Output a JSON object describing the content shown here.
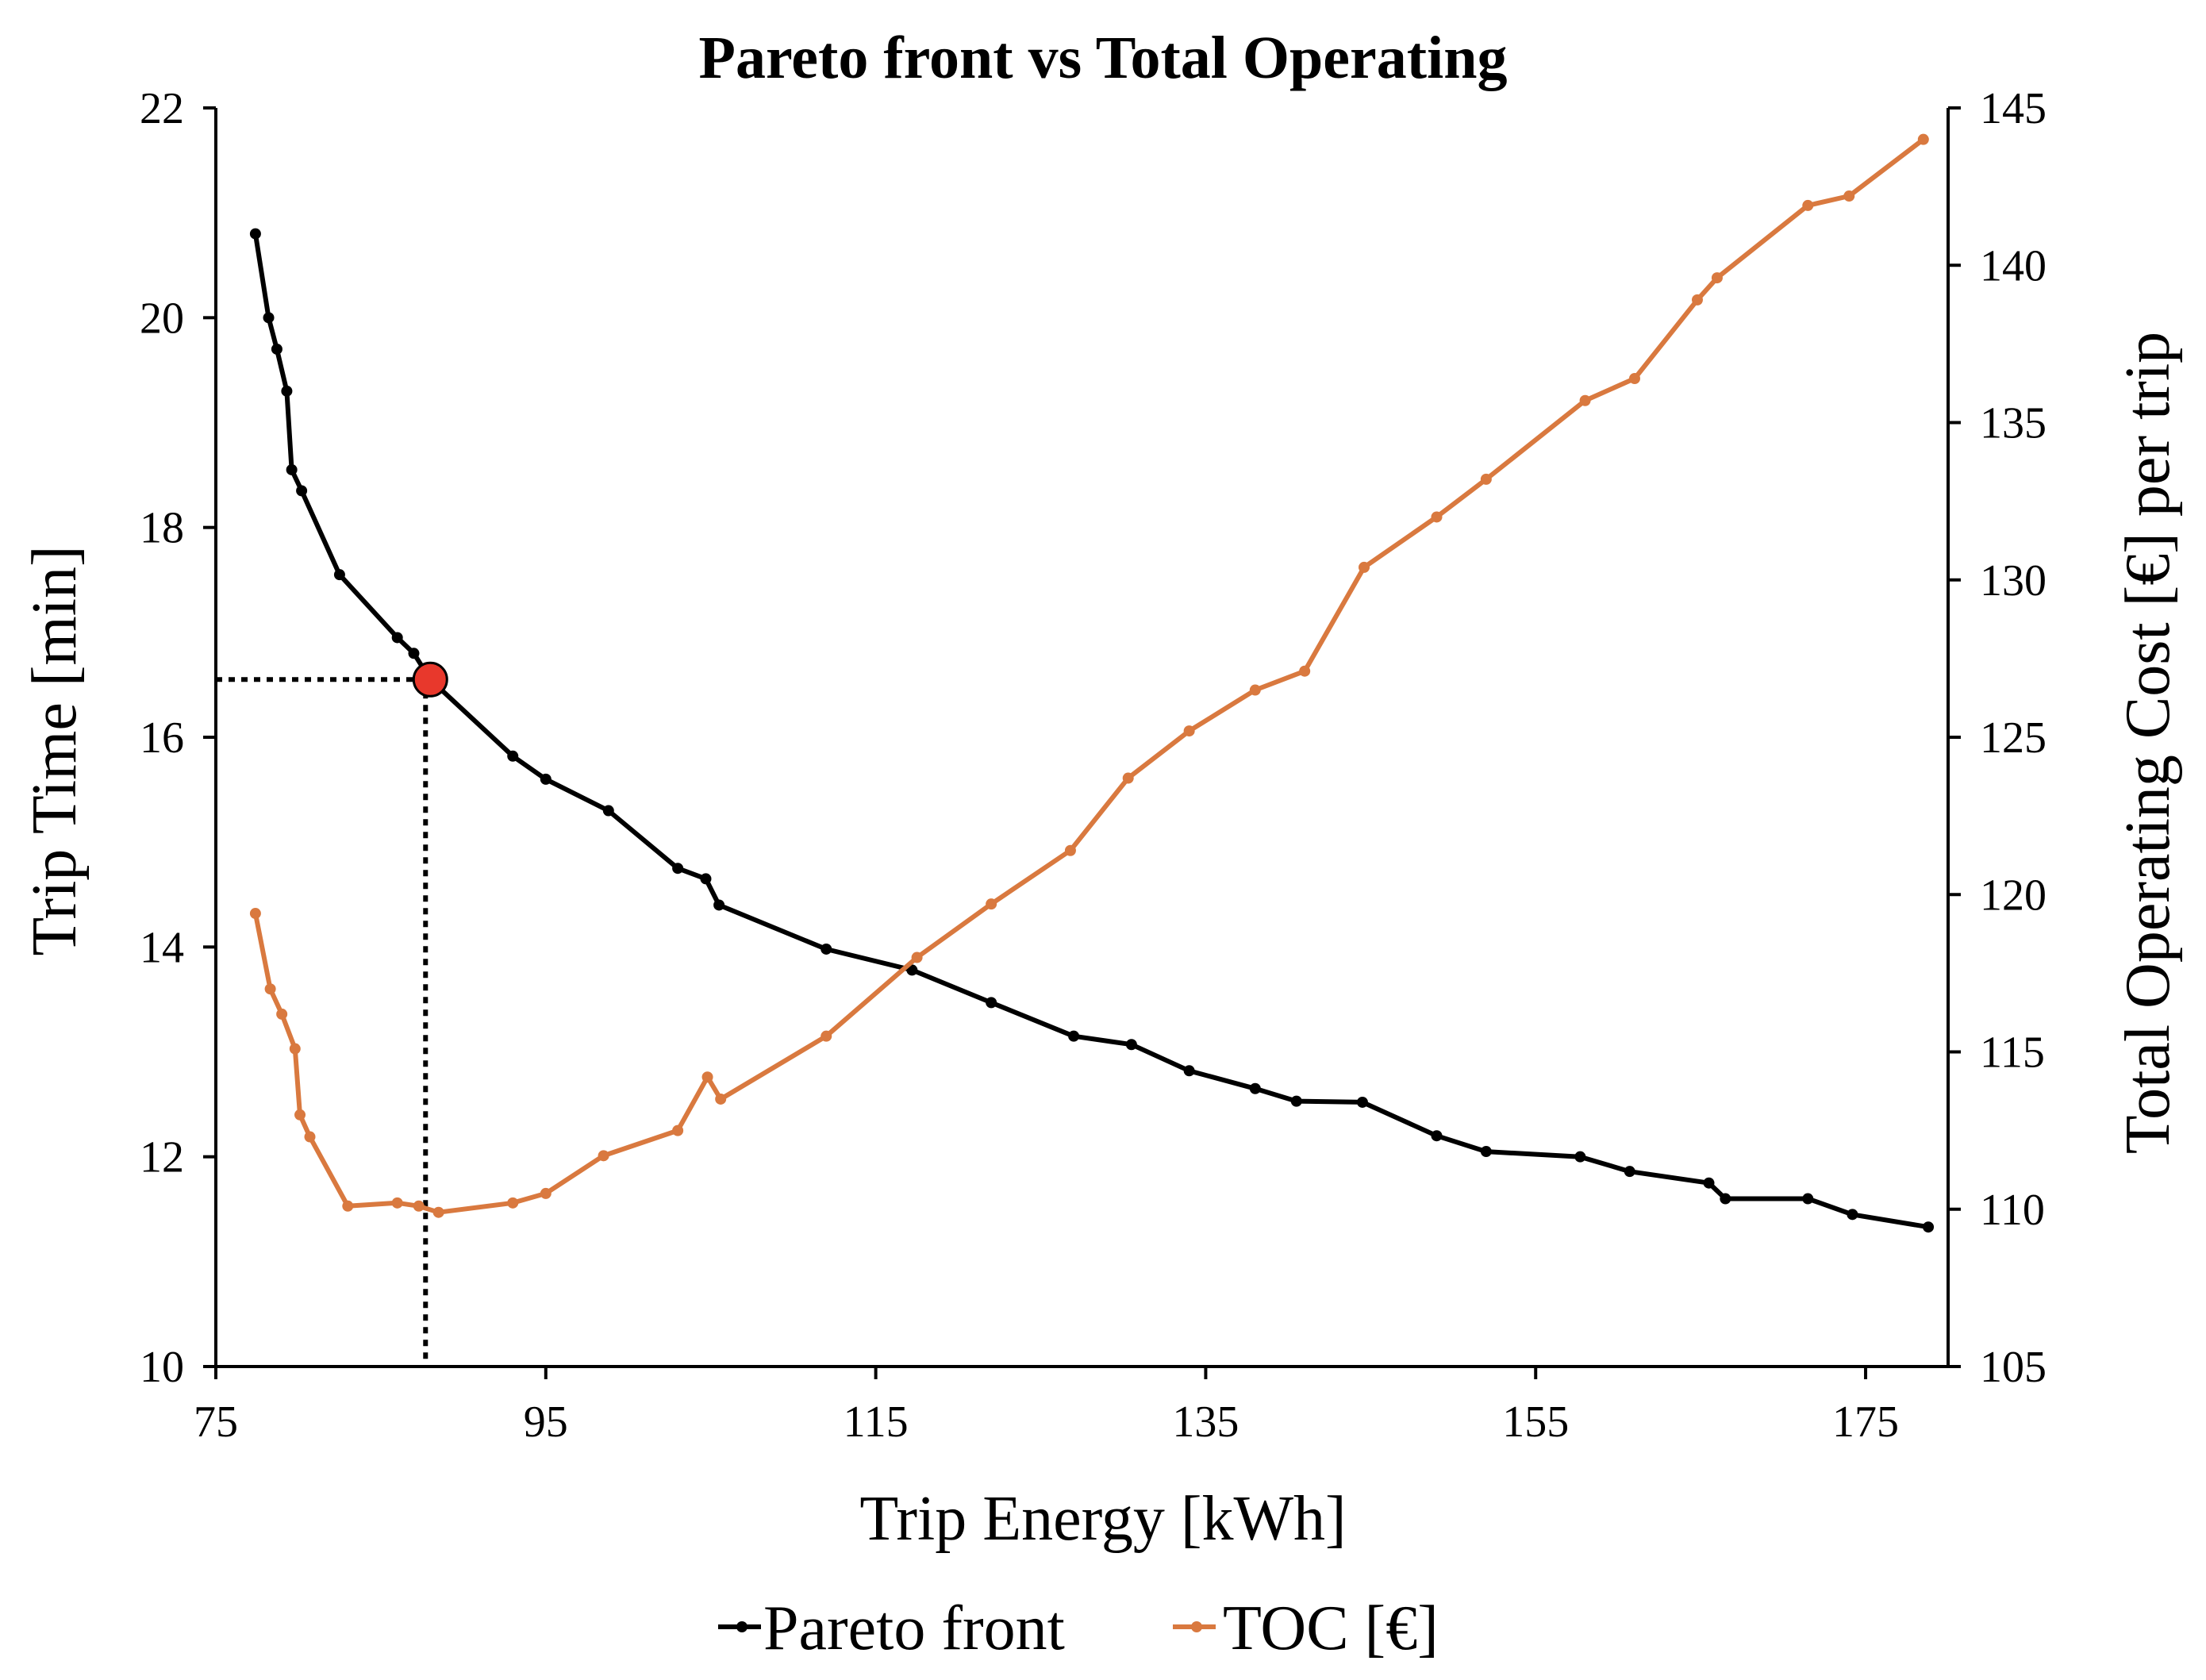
{
  "chart_data": {
    "type": "line",
    "title": "Pareto front vs Total Operating",
    "xlabel": "Trip Energy [kWh]",
    "ylabel": "Trip Time [min]",
    "y2label": "Total Operating Cost [€] per trip",
    "xlim": [
      75,
      180
    ],
    "ylim": [
      10,
      22
    ],
    "y2lim": [
      105,
      145
    ],
    "xticks": [
      75,
      95,
      115,
      135,
      155,
      175
    ],
    "xtick_labels": [
      "75",
      "95",
      "115",
      "135",
      "155",
      "175"
    ],
    "yticks": [
      10,
      12,
      14,
      16,
      18,
      20,
      22
    ],
    "ytick_labels": [
      "10",
      "12",
      "14",
      "16",
      "18",
      "20",
      "22"
    ],
    "y2ticks": [
      105,
      110,
      115,
      120,
      125,
      130,
      135,
      140,
      145
    ],
    "y2tick_labels": [
      "105",
      "110",
      "115",
      "120",
      "125",
      "130",
      "135",
      "140",
      "145"
    ],
    "grid": false,
    "legend_position": "bottom",
    "series": [
      {
        "name": "Pareto front",
        "axis": "left",
        "color": "#000000",
        "x": [
          77.4,
          78.2,
          78.7,
          79.3,
          79.6,
          80.2,
          82.5,
          86.0,
          87.0,
          88.0,
          93.0,
          95.0,
          98.8,
          103.0,
          104.7,
          105.5,
          112.0,
          117.2,
          122.0,
          127.0,
          130.5,
          134.0,
          138.0,
          140.5,
          144.5,
          149.0,
          152.0,
          157.7,
          160.7,
          165.5,
          166.5,
          171.5,
          174.2,
          178.8
        ],
        "y": [
          20.8,
          20.0,
          19.7,
          19.3,
          18.55,
          18.35,
          17.55,
          16.95,
          16.8,
          16.55,
          15.82,
          15.6,
          15.3,
          14.75,
          14.65,
          14.4,
          13.98,
          13.78,
          13.47,
          13.15,
          13.07,
          12.82,
          12.65,
          12.53,
          12.52,
          12.2,
          12.05,
          12.0,
          11.86,
          11.75,
          11.6,
          11.6,
          11.45,
          11.33
        ]
      },
      {
        "name": "TOC [€]",
        "axis": "right",
        "color": "#D9793F",
        "x": [
          77.4,
          78.3,
          79.0,
          79.8,
          80.1,
          80.7,
          83.0,
          86.0,
          87.3,
          88.5,
          93.0,
          95.0,
          98.5,
          103.0,
          104.8,
          105.6,
          112.0,
          117.5,
          122.0,
          126.8,
          130.3,
          134.0,
          138.0,
          141.0,
          144.6,
          149.0,
          152.0,
          158.0,
          161.0,
          164.8,
          166.0,
          171.5,
          174.0,
          178.5
        ],
        "y": [
          119.4,
          117.0,
          116.2,
          115.1,
          113.0,
          112.3,
          110.1,
          110.2,
          110.1,
          109.9,
          110.2,
          110.5,
          111.7,
          112.5,
          114.2,
          113.5,
          115.5,
          118.0,
          119.7,
          121.4,
          123.7,
          125.2,
          126.5,
          127.1,
          130.4,
          132.0,
          133.2,
          135.7,
          136.4,
          138.9,
          139.6,
          141.9,
          142.2,
          144.0
        ]
      }
    ],
    "annotations": [
      {
        "name": "selected-solution",
        "x": 88.0,
        "y": 16.55,
        "color": "#E8382C"
      }
    ]
  }
}
